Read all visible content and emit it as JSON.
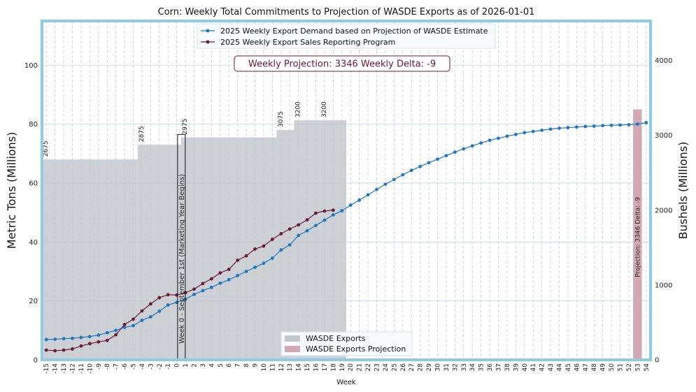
{
  "chart_data": {
    "type": "bar+line",
    "title": "Corn: Weekly Total Commitments to Projection of WASDE Exports as of 2026-01-01",
    "xlabel": "Week",
    "ylabel_left": "Metric Tons (Millions)",
    "ylabel_right": "Bushels (Millions)",
    "ylim_left": [
      0,
      115
    ],
    "ylim_right": [
      0,
      4528
    ],
    "yticks_left": [
      0,
      20,
      40,
      60,
      80,
      100
    ],
    "yticks_right": [
      0,
      1000,
      2000,
      3000,
      4000
    ],
    "weeks": [
      -15,
      -14,
      -13,
      -12,
      -11,
      -10,
      -9,
      -8,
      -7,
      -6,
      -5,
      -4,
      -3,
      -2,
      -1,
      0,
      1,
      2,
      3,
      4,
      5,
      6,
      7,
      8,
      9,
      10,
      11,
      12,
      13,
      14,
      15,
      16,
      17,
      18,
      19,
      20,
      21,
      22,
      23,
      24,
      25,
      26,
      27,
      28,
      29,
      30,
      31,
      32,
      33,
      34,
      35,
      36,
      37,
      38,
      39,
      40,
      41,
      42,
      43,
      44,
      45,
      46,
      47,
      48,
      49,
      50,
      51,
      52,
      53,
      54
    ],
    "bar_label": "WASDE Exports",
    "bar_projection_label": "WASDE Exports Projection",
    "wasde_bars": [
      {
        "from": -15,
        "to": -5,
        "value_mt": 68.0,
        "label": "2675"
      },
      {
        "from": -4,
        "to": 0,
        "value_mt": 73.0,
        "label": "2875"
      },
      {
        "from": 1,
        "to": 11,
        "value_mt": 75.5,
        "label": "2975"
      },
      {
        "from": 12,
        "to": 13,
        "value_mt": 78.0,
        "label": "3075"
      },
      {
        "from": 14,
        "to": 16,
        "value_mt": 81.3,
        "label": "3200"
      },
      {
        "from": 17,
        "to": 19,
        "value_mt": 81.3,
        "label": "3200"
      }
    ],
    "projection_bar": {
      "week": 53,
      "value_mt": 85.0,
      "label": "Projection: 3346   Delta: -9"
    },
    "series": [
      {
        "name": "2025 Weekly Export Demand based on Projection of WASDE Estimate",
        "color": "#1f77c4",
        "x": [
          -15,
          -14,
          -13,
          -12,
          -11,
          -10,
          -9,
          -8,
          -7,
          -6,
          -5,
          -4,
          -3,
          -2,
          -1,
          0,
          1,
          2,
          3,
          4,
          5,
          6,
          7,
          8,
          9,
          10,
          11,
          12,
          13,
          14,
          15,
          16,
          17,
          18,
          19,
          20,
          21,
          22,
          23,
          24,
          25,
          26,
          27,
          28,
          29,
          30,
          31,
          32,
          33,
          34,
          35,
          36,
          37,
          38,
          39,
          40,
          41,
          42,
          43,
          44,
          45,
          46,
          47,
          48,
          49,
          50,
          51,
          52,
          53,
          54
        ],
        "values": [
          6.9,
          7.0,
          7.2,
          7.3,
          7.6,
          7.9,
          8.4,
          9.2,
          10.0,
          11.0,
          11.6,
          13.4,
          14.6,
          16.5,
          18.6,
          19.5,
          20.6,
          22.2,
          23.5,
          24.6,
          26.0,
          27.2,
          28.6,
          30.0,
          31.4,
          32.8,
          34.5,
          37.3,
          39.0,
          42.2,
          43.8,
          45.6,
          47.4,
          49.2,
          50.6,
          52.5,
          54.2,
          56.0,
          57.8,
          59.6,
          61.2,
          62.8,
          64.3,
          65.6,
          66.9,
          68.1,
          69.3,
          70.5,
          71.6,
          72.6,
          73.6,
          74.5,
          75.2,
          75.9,
          76.5,
          77.1,
          77.5,
          77.9,
          78.3,
          78.6,
          78.8,
          79.0,
          79.2,
          79.3,
          79.5,
          79.6,
          79.7,
          79.8,
          80.0,
          80.5
        ]
      },
      {
        "name": "2025 Weekly Export Sales Reporting Program",
        "color": "#6b1a35",
        "x": [
          -15,
          -14,
          -13,
          -12,
          -11,
          -10,
          -9,
          -8,
          -7,
          -6,
          -5,
          -4,
          -3,
          -2,
          -1,
          0,
          1,
          2,
          3,
          4,
          5,
          6,
          7,
          8,
          9,
          10,
          11,
          12,
          13,
          14,
          15,
          16,
          17,
          18
        ],
        "values": [
          3.3,
          3.1,
          3.3,
          3.7,
          4.7,
          5.5,
          6.1,
          6.6,
          8.5,
          12.0,
          13.8,
          16.6,
          19.0,
          21.1,
          22.1,
          22.0,
          22.8,
          24.0,
          25.9,
          27.5,
          29.5,
          30.7,
          33.8,
          35.3,
          37.6,
          38.6,
          40.9,
          42.8,
          44.4,
          45.8,
          47.5,
          49.8,
          50.5,
          50.8
        ]
      }
    ],
    "annotations": {
      "weekly_projection_box": "Weekly Projection: 3346    Weekly Delta: -9",
      "week0_label": "Week 0 - September 1st (Marketing Year Begins)"
    },
    "legend_top_placement": "top-center",
    "legend_bottom_placement": "bottom-center",
    "grid": true
  }
}
